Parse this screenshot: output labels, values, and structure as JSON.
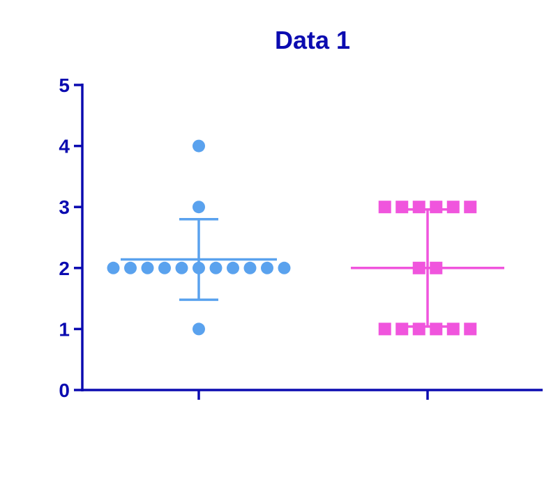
{
  "chart_data": {
    "type": "scatter",
    "title": "Data 1",
    "xlabel": "",
    "ylabel": "",
    "ylim": [
      0,
      5
    ],
    "yticks": [
      0,
      1,
      2,
      3,
      4,
      5
    ],
    "grid": false,
    "legend": "none",
    "series": [
      {
        "marker": "circle",
        "color": "#5AA2EE",
        "points": [
          1,
          2,
          2,
          2,
          2,
          2,
          2,
          2,
          2,
          2,
          2,
          2,
          3,
          4
        ],
        "mean": 2.14,
        "sd_upper": 2.8,
        "sd_lower": 1.48
      },
      {
        "marker": "square",
        "color": "#F055DD",
        "points": [
          1,
          1,
          1,
          1,
          1,
          1,
          2,
          2,
          3,
          3,
          3,
          3,
          3,
          3
        ],
        "mean": 2.0,
        "sd_upper": 2.96,
        "sd_lower": 1.04
      }
    ],
    "axis_color": "#0B0BB0"
  }
}
